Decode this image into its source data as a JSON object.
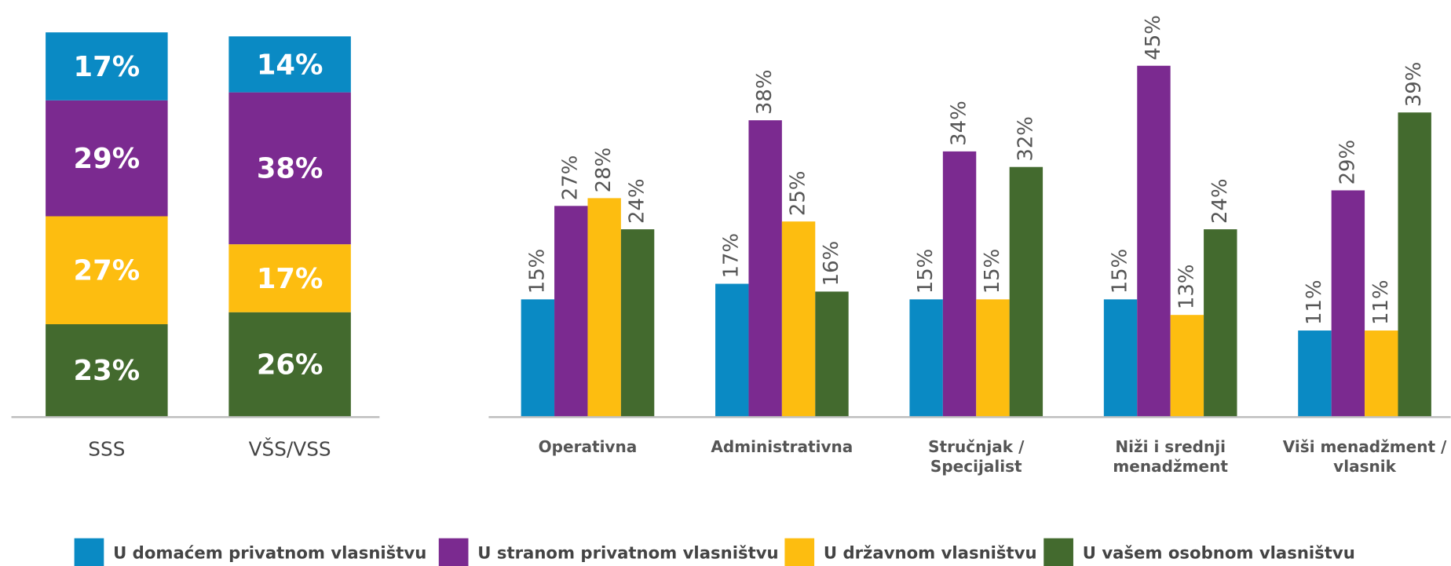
{
  "chart_data": [
    {
      "type": "bar",
      "stacked": true,
      "categories": [
        "SSS",
        "VŠS/VSS"
      ],
      "series": [
        {
          "name": "U domaćem privatnom vlasništvu",
          "color": "#0a8ac4",
          "values": [
            17,
            14
          ],
          "value_labels": [
            "17%",
            "14%"
          ]
        },
        {
          "name": "U stranom privatnom vlasništvu",
          "color": "#7b2a90",
          "values": [
            29,
            38
          ],
          "value_labels": [
            "29%",
            "38%"
          ]
        },
        {
          "name": "U državnom vlasništvu",
          "color": "#fdbd10",
          "values": [
            27,
            17
          ],
          "value_labels": [
            "27%",
            "17%"
          ]
        },
        {
          "name": "U vašem osobnom vlasništvu",
          "color": "#436a2e",
          "values": [
            23,
            26
          ],
          "value_labels": [
            "23%",
            "26%"
          ]
        }
      ],
      "ylim": [
        0,
        96
      ]
    },
    {
      "type": "bar",
      "stacked": false,
      "categories": [
        "Operativna",
        "Administrativna",
        "Stručnjak / Specijalist",
        "Niži i srednji menadžment",
        "Viši menadžment / vlasnik"
      ],
      "series": [
        {
          "color": "#0a8ac4",
          "values": [
            15,
            17,
            15,
            15,
            11
          ],
          "value_labels": [
            "15%",
            "17%",
            "15%",
            "15%",
            "11%"
          ]
        },
        {
          "color": "#7b2a90",
          "values": [
            27,
            38,
            34,
            45,
            29
          ],
          "value_labels": [
            "27%",
            "38%",
            "34%",
            "45%",
            "29%"
          ]
        },
        {
          "color": "#fdbd10",
          "values": [
            28,
            25,
            15,
            13,
            11
          ],
          "value_labels": [
            "28%",
            "25%",
            "15%",
            "13%",
            "11%"
          ]
        },
        {
          "color": "#436a2e",
          "values": [
            24,
            16,
            32,
            24,
            39
          ],
          "value_labels": [
            "24%",
            "16%",
            "32%",
            "24%",
            "39%"
          ]
        }
      ],
      "ylim": [
        0,
        50
      ]
    }
  ]
}
